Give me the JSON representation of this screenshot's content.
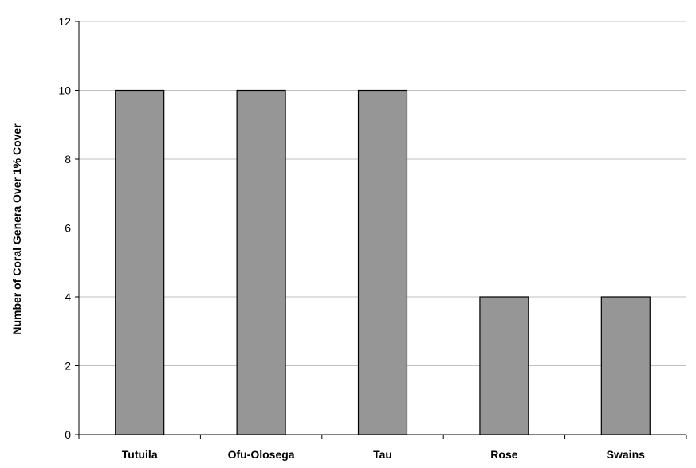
{
  "chart_data": {
    "type": "bar",
    "title": "",
    "xlabel": "",
    "ylabel": "Number of Coral Genera Over 1% Cover",
    "categories": [
      "Tutuila",
      "Ofu-Olosega",
      "Tau",
      "Rose",
      "Swains"
    ],
    "values": [
      10,
      10,
      10,
      4,
      4
    ],
    "ylim": [
      0,
      12
    ],
    "yticks": [
      0,
      2,
      4,
      6,
      8,
      10,
      12
    ],
    "grid": true,
    "legend": "none",
    "bar_color": "#969696",
    "bar_edge_color": "#000000",
    "grid_color": "#c0c0c0"
  }
}
